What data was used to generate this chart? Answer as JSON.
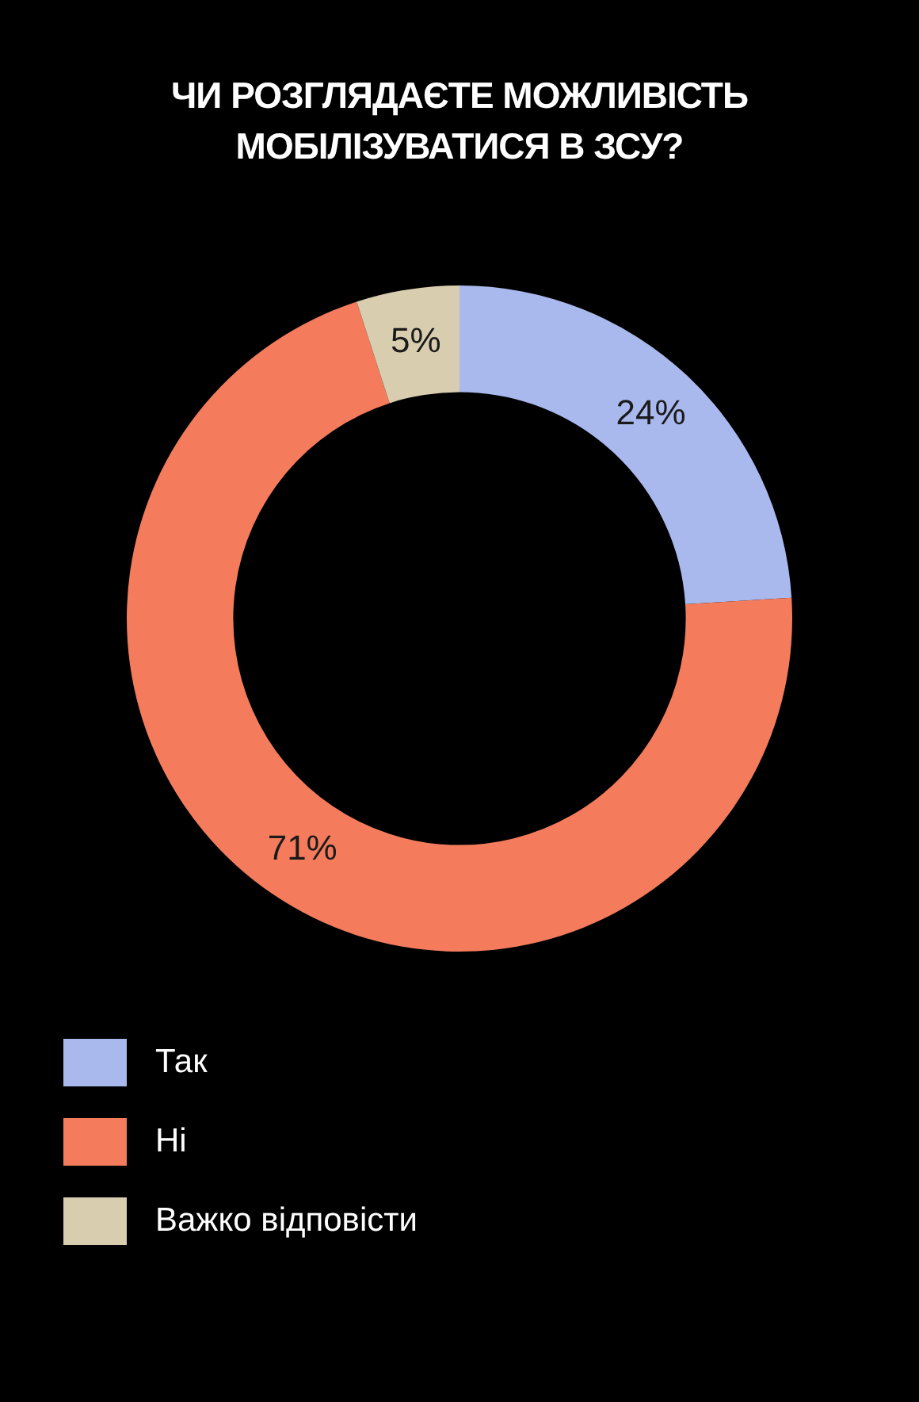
{
  "chart_data": {
    "type": "donut",
    "title": "ЧИ РОЗГЛЯДАЄТЕ МОЖЛИВІСТЬ МОБІЛІЗУВАТИСЯ В ЗСУ?",
    "categories": [
      "Так",
      "Ні",
      "Важко відповісти"
    ],
    "values": [
      24,
      71,
      5
    ],
    "colors": [
      "#a9b9ee",
      "#f47c5c",
      "#d9cdb0"
    ],
    "value_labels": [
      "24%",
      "71%",
      "5%"
    ],
    "legend": "bottom left"
  }
}
